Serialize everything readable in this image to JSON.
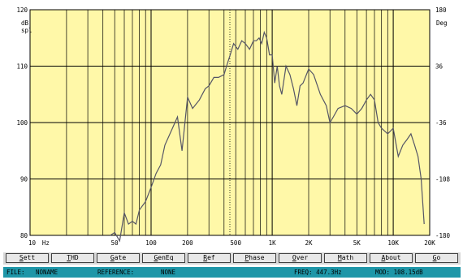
{
  "plot": {
    "left_unit_top": "dB",
    "left_unit_bottom": "spl",
    "right_unit_top": "Deg",
    "y_ticks": [
      "120",
      "110",
      "100",
      "90",
      "80"
    ],
    "right_ticks": [
      "180",
      "36",
      "-36",
      "-108",
      "-180"
    ],
    "x_ticks": [
      {
        "label": "10",
        "f": 10
      },
      {
        "label": "Hz",
        "f": 13.5
      },
      {
        "label": "50",
        "f": 50
      },
      {
        "label": "100",
        "f": 100
      },
      {
        "label": "200",
        "f": 200
      },
      {
        "label": "500",
        "f": 500
      },
      {
        "label": "1K",
        "f": 1000
      },
      {
        "label": "2K",
        "f": 2000
      },
      {
        "label": "5K",
        "f": 5000
      },
      {
        "label": "10K",
        "f": 10000
      },
      {
        "label": "20K",
        "f": 20000
      }
    ]
  },
  "chart_data": {
    "type": "line",
    "xscale": "log",
    "xlim": [
      10,
      20000
    ],
    "ylim": [
      80,
      120
    ],
    "ylabel": "dB spl",
    "grid": true,
    "series": [
      {
        "x": [
          46,
          50,
          55,
          60,
          65,
          70,
          75,
          80,
          90,
          100,
          110,
          120,
          130,
          150,
          165,
          180,
          200,
          220,
          250,
          280,
          300,
          330,
          360,
          400,
          420,
          450,
          480,
          520,
          560,
          600,
          650,
          700,
          740,
          780,
          820,
          860,
          900,
          950,
          1000,
          1050,
          1100,
          1150,
          1200,
          1300,
          1400,
          1500,
          1600,
          1700,
          1800,
          2000,
          2200,
          2500,
          2800,
          3000,
          3200,
          3500,
          4000,
          4500,
          5000,
          5500,
          6000,
          6500,
          7000,
          7500,
          8000,
          9000,
          10000,
          11000,
          12000,
          13000,
          14000,
          15000,
          16000,
          17000,
          18000
        ],
        "y": [
          80,
          80.5,
          79,
          84,
          82,
          82.5,
          82,
          84.5,
          86,
          88.5,
          91,
          92.5,
          96,
          99,
          101,
          95,
          104.5,
          102.5,
          104,
          106,
          106.5,
          108,
          108,
          108.5,
          110,
          112,
          114,
          113,
          114.5,
          114,
          113,
          114.5,
          114.5,
          115,
          114,
          116,
          115,
          112,
          112,
          107,
          110,
          106.5,
          105,
          110,
          108.5,
          106,
          103,
          106.5,
          107,
          109.5,
          108.5,
          105,
          103,
          100,
          101,
          102.5,
          103,
          102.5,
          101.5,
          102.5,
          104,
          105,
          104,
          100,
          99,
          98,
          99,
          94,
          96,
          97,
          98,
          96,
          94,
          90,
          82
        ]
      }
    ]
  },
  "buttons": [
    {
      "key": "S",
      "rest": "ett"
    },
    {
      "key": "T",
      "rest": "HD"
    },
    {
      "key": "G",
      "rest": "ate"
    },
    {
      "key": "G",
      "rest": "enEq"
    },
    {
      "key": "R",
      "rest": "ef"
    },
    {
      "key": "P",
      "rest": "hase"
    },
    {
      "key": "O",
      "rest": "ver"
    },
    {
      "key": "M",
      "rest": "ath"
    },
    {
      "key": "A",
      "rest": "bout"
    },
    {
      "key": "G",
      "rest": "o"
    }
  ],
  "status": {
    "file_label": "FILE:",
    "file_value": "NONAME",
    "reference_label": "REFERENCE:",
    "reference_value": "NONE",
    "freq": "FREQ: 447.3Hz",
    "mod": "MOD: 108.15dB"
  },
  "colors": {
    "plot_bg": "#fff8a8",
    "grid": "#000000",
    "trace": "#555566",
    "status_bg": "#1e96a8"
  }
}
